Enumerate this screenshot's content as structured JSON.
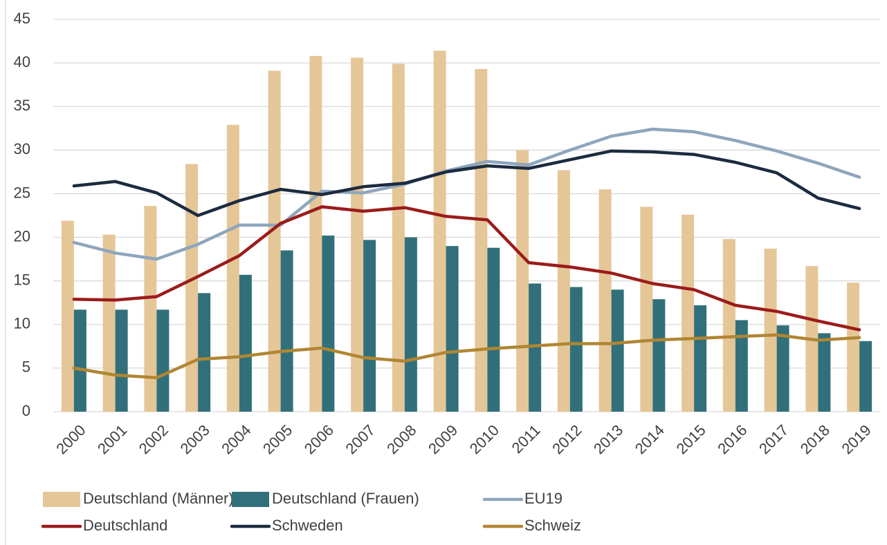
{
  "chart_data": {
    "type": "bar",
    "categories": [
      "2000",
      "2001",
      "2002",
      "2003",
      "2004",
      "2005",
      "2006",
      "2007",
      "2008",
      "2009",
      "2010",
      "2011",
      "2012",
      "2013",
      "2014",
      "2015",
      "2016",
      "2017",
      "2018",
      "2019"
    ],
    "series": [
      {
        "name": "Deutschland (Männer)",
        "type": "bar",
        "color": "#e5c697",
        "values": [
          21.9,
          20.3,
          23.6,
          28.4,
          32.9,
          39.1,
          40.8,
          40.6,
          39.9,
          41.4,
          39.3,
          30.0,
          27.7,
          25.5,
          23.5,
          22.6,
          19.8,
          18.7,
          16.7,
          14.8
        ]
      },
      {
        "name": "Deutschland (Frauen)",
        "type": "bar",
        "color": "#31707a",
        "values": [
          11.7,
          11.7,
          11.7,
          13.6,
          15.7,
          18.5,
          20.2,
          19.7,
          20.0,
          19.0,
          18.8,
          14.7,
          14.3,
          14.0,
          12.9,
          12.2,
          10.5,
          9.9,
          9.0,
          8.1
        ]
      },
      {
        "name": "EU19",
        "type": "line",
        "color": "#8ea5bd",
        "values": [
          19.4,
          18.2,
          17.5,
          19.2,
          21.4,
          21.4,
          25.3,
          25.1,
          26.1,
          27.6,
          28.7,
          28.3,
          30.0,
          31.6,
          32.4,
          32.1,
          31.1,
          29.9,
          28.5,
          26.9
        ]
      },
      {
        "name": "Deutschland",
        "type": "line",
        "color": "#9b1b1b",
        "values": [
          12.9,
          12.8,
          13.2,
          15.5,
          17.9,
          21.6,
          23.5,
          23.0,
          23.4,
          22.4,
          22.0,
          17.1,
          16.6,
          15.9,
          14.7,
          14.0,
          12.2,
          11.5,
          10.4,
          9.4
        ]
      },
      {
        "name": "Schweden",
        "type": "line",
        "color": "#1c2b3f",
        "values": [
          25.9,
          26.4,
          25.1,
          22.5,
          24.2,
          25.5,
          24.9,
          25.8,
          26.2,
          27.5,
          28.2,
          27.9,
          28.9,
          29.9,
          29.8,
          29.5,
          28.6,
          27.4,
          24.5,
          23.3
        ]
      },
      {
        "name": "Schweiz",
        "type": "line",
        "color": "#b08632",
        "values": [
          5.0,
          4.2,
          3.9,
          6.0,
          6.3,
          6.9,
          7.3,
          6.2,
          5.8,
          6.8,
          7.2,
          7.5,
          7.8,
          7.8,
          8.2,
          8.4,
          8.6,
          8.8,
          8.2,
          8.5
        ]
      }
    ],
    "ylim": [
      0,
      45
    ],
    "yticks": [
      0,
      5,
      10,
      15,
      20,
      25,
      30,
      35,
      40,
      45
    ],
    "grid": true
  }
}
